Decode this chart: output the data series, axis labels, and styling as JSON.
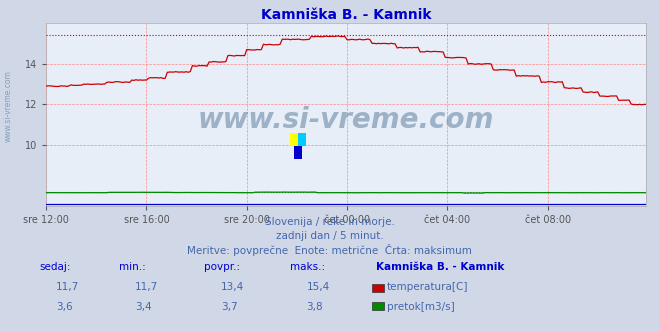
{
  "title": "Kamniška B. - Kamnik",
  "title_color": "#0000cc",
  "bg_color": "#d0d8e8",
  "plot_bg_color": "#e8eef8",
  "grid_color": "#ff8888",
  "watermark_text": "www.si-vreme.com",
  "watermark_color": "#6080a0",
  "x_tick_labels": [
    "sre 12:00",
    "sre 16:00",
    "sre 20:00",
    "čet 00:00",
    "čet 04:00",
    "čet 08:00"
  ],
  "x_tick_positions": [
    0,
    48,
    96,
    144,
    192,
    240
  ],
  "total_points": 288,
  "ylim_temp": [
    7.0,
    16.0
  ],
  "yticks_temp": [
    10,
    12,
    14
  ],
  "temp_color": "#cc0000",
  "flow_color": "#008800",
  "height_color": "#0000cc",
  "subtitle_line1": "Slovenija / reke in morje.",
  "subtitle_line2": "zadnji dan / 5 minut.",
  "subtitle_line3": "Meritve: povprečne  Enote: metrične  Črta: maksimum",
  "subtitle_color": "#4466aa",
  "table_label_color": "#0000cc",
  "table_value_color": "#4466aa",
  "table_headers": [
    "sedaj:",
    "min.:",
    "povpr.:",
    "maks.:",
    "Kamniška B. - Kamnik"
  ],
  "table_row1": [
    "11,7",
    "11,7",
    "13,4",
    "15,4"
  ],
  "table_row2": [
    "3,6",
    "3,4",
    "3,7",
    "3,8"
  ],
  "legend_labels": [
    "temperatura[C]",
    "pretok[m3/s]"
  ],
  "legend_colors": [
    "#cc0000",
    "#008800"
  ],
  "temp_max_val": 15.4,
  "flow_max_val": 3.8,
  "sivreme_left_label": "www.si-vreme.com"
}
